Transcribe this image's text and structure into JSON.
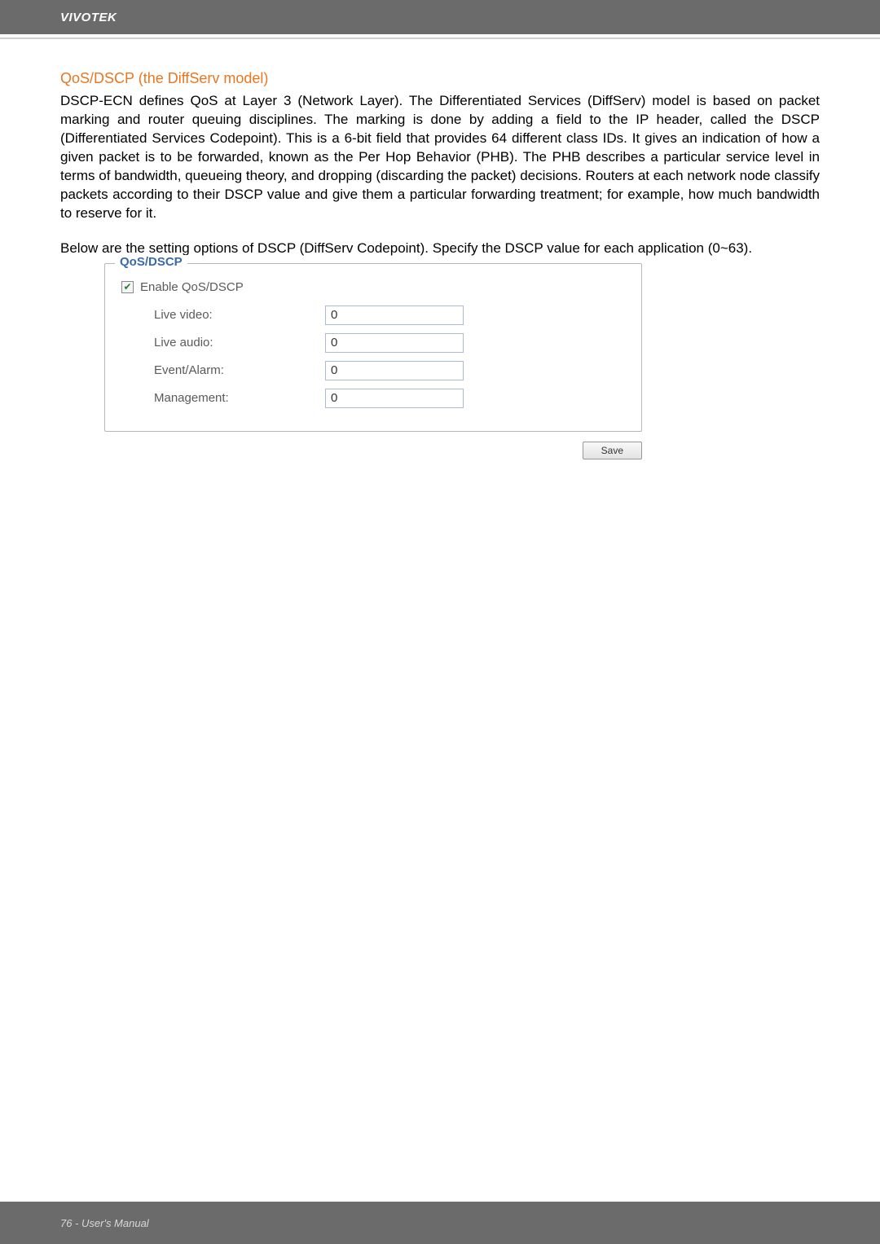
{
  "header": {
    "brand": "VIVOTEK"
  },
  "section": {
    "title": "QoS/DSCP (the DiffServ model)",
    "paragraph1": "DSCP-ECN defines QoS at Layer 3 (Network Layer). The Differentiated Services (DiffServ) model is based on packet marking and router queuing disciplines. The marking is done by adding a field to the IP header, called the DSCP (Differentiated Services Codepoint). This is a 6-bit field that provides 64 different class IDs. It gives an indication of how a given packet is to be forwarded, known as the Per Hop Behavior (PHB). The PHB describes a particular service level in terms of bandwidth, queueing theory, and dropping (discarding the packet) decisions. Routers at each network node classify packets according to their DSCP value and give them a particular forwarding treatment; for example, how much bandwidth to reserve for it.",
    "paragraph2": "Below are the setting options of DSCP (DiffServ Codepoint). Specify the DSCP value for each application (0~63)."
  },
  "fieldset": {
    "legend": "QoS/DSCP",
    "enable_label": "Enable QoS/DSCP",
    "enable_checked": true,
    "rows": [
      {
        "label": "Live video:",
        "value": "0"
      },
      {
        "label": "Live audio:",
        "value": "0"
      },
      {
        "label": "Event/Alarm:",
        "value": "0"
      },
      {
        "label": "Management:",
        "value": "0"
      }
    ],
    "save_label": "Save"
  },
  "footer": {
    "text": "76 - User's Manual"
  },
  "colors": {
    "page_bg": "#ffffff",
    "outer_bg": "#a8a8a8",
    "bar_bg": "#6b6b6b",
    "title_color": "#e87722",
    "legend_color": "#3a6aa8",
    "label_color": "#5a5a5a",
    "input_border": "#aabbd4"
  }
}
